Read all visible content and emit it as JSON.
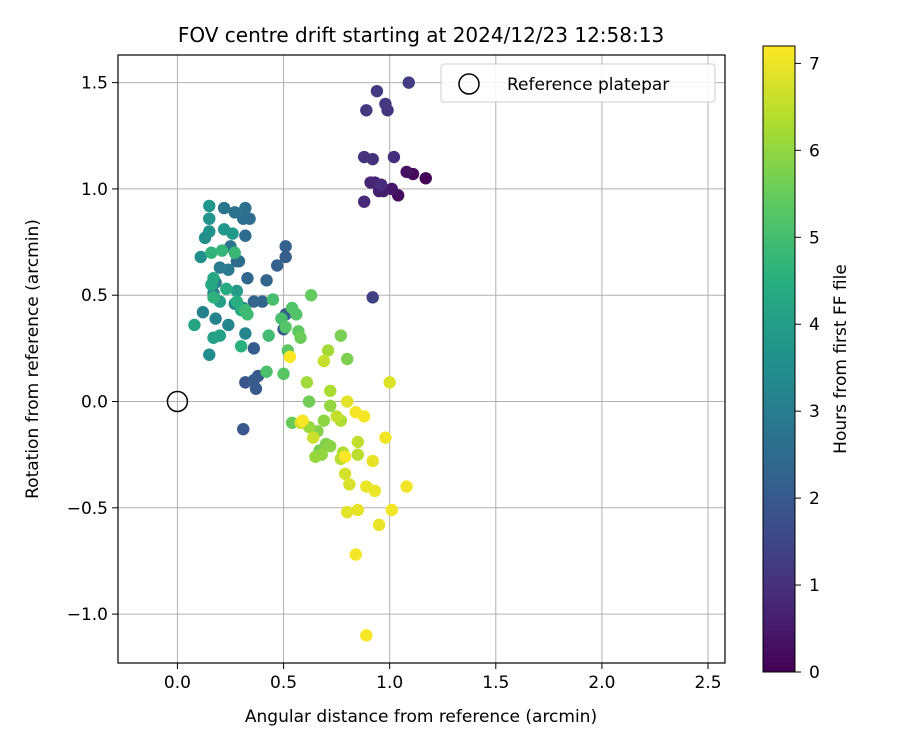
{
  "chart_data": {
    "type": "scatter",
    "title": "FOV centre drift starting at 2024/12/23 12:58:13",
    "xlabel": "Angular distance from reference (arcmin)",
    "ylabel": "Rotation from reference (arcmin)",
    "xlim": [
      -0.28,
      2.58
    ],
    "ylim": [
      -1.23,
      1.63
    ],
    "xticks": [
      0.0,
      0.5,
      1.0,
      1.5,
      2.0,
      2.5
    ],
    "xtick_labels": [
      "0.0",
      "0.5",
      "1.0",
      "1.5",
      "2.0",
      "2.5"
    ],
    "yticks": [
      -1.0,
      -0.5,
      0.0,
      0.5,
      1.0,
      1.5
    ],
    "ytick_labels": [
      "−1.0",
      "−0.5",
      "0.0",
      "0.5",
      "1.0",
      "1.5"
    ],
    "grid": true,
    "legend": {
      "placement": "top-right",
      "entries": [
        "Reference platepar"
      ]
    },
    "reference_point": {
      "x": 0.0,
      "y": 0.0
    },
    "colorbar": {
      "label": "Hours from first FF file",
      "colormap": "viridis",
      "range": [
        0,
        7.2
      ],
      "ticks": [
        0,
        1,
        2,
        3,
        4,
        5,
        6,
        7
      ],
      "tick_labels": [
        "0",
        "1",
        "2",
        "3",
        "4",
        "5",
        "6",
        "7"
      ]
    },
    "points": [
      {
        "x": 1.17,
        "y": 1.05,
        "h": 0.05
      },
      {
        "x": 1.11,
        "y": 1.07,
        "h": 0.15
      },
      {
        "x": 1.04,
        "y": 0.97,
        "h": 0.25
      },
      {
        "x": 1.08,
        "y": 1.08,
        "h": 0.35
      },
      {
        "x": 1.01,
        "y": 1.0,
        "h": 0.45
      },
      {
        "x": 0.97,
        "y": 0.99,
        "h": 0.55
      },
      {
        "x": 0.95,
        "y": 0.99,
        "h": 0.6
      },
      {
        "x": 0.93,
        "y": 1.03,
        "h": 0.7
      },
      {
        "x": 0.91,
        "y": 1.03,
        "h": 0.75
      },
      {
        "x": 0.88,
        "y": 0.94,
        "h": 0.85
      },
      {
        "x": 0.96,
        "y": 1.02,
        "h": 0.9
      },
      {
        "x": 1.02,
        "y": 1.15,
        "h": 0.95
      },
      {
        "x": 0.92,
        "y": 1.14,
        "h": 1.0
      },
      {
        "x": 0.88,
        "y": 1.15,
        "h": 1.05
      },
      {
        "x": 0.99,
        "y": 1.37,
        "h": 1.1
      },
      {
        "x": 0.98,
        "y": 1.4,
        "h": 1.15
      },
      {
        "x": 0.89,
        "y": 1.37,
        "h": 1.2
      },
      {
        "x": 0.94,
        "y": 1.46,
        "h": 1.25
      },
      {
        "x": 1.09,
        "y": 1.5,
        "h": 1.3
      },
      {
        "x": 0.92,
        "y": 0.49,
        "h": 1.4
      },
      {
        "x": 0.31,
        "y": -0.13,
        "h": 1.95
      },
      {
        "x": 0.32,
        "y": 0.09,
        "h": 1.95
      },
      {
        "x": 0.38,
        "y": 0.12,
        "h": 2.0
      },
      {
        "x": 0.37,
        "y": 0.06,
        "h": 2.0
      },
      {
        "x": 0.36,
        "y": 0.1,
        "h": 2.05
      },
      {
        "x": 0.36,
        "y": 0.25,
        "h": 2.05
      },
      {
        "x": 0.51,
        "y": 0.41,
        "h": 2.1
      },
      {
        "x": 0.5,
        "y": 0.34,
        "h": 2.1
      },
      {
        "x": 0.51,
        "y": 0.68,
        "h": 2.15
      },
      {
        "x": 0.51,
        "y": 0.73,
        "h": 2.2
      },
      {
        "x": 0.47,
        "y": 0.64,
        "h": 2.25
      },
      {
        "x": 0.42,
        "y": 0.57,
        "h": 2.3
      },
      {
        "x": 0.4,
        "y": 0.47,
        "h": 2.3
      },
      {
        "x": 0.36,
        "y": 0.47,
        "h": 2.35
      },
      {
        "x": 0.33,
        "y": 0.58,
        "h": 2.4
      },
      {
        "x": 0.28,
        "y": 0.66,
        "h": 2.45
      },
      {
        "x": 0.29,
        "y": 0.66,
        "h": 2.5
      },
      {
        "x": 0.32,
        "y": 0.78,
        "h": 2.5
      },
      {
        "x": 0.34,
        "y": 0.86,
        "h": 2.6
      },
      {
        "x": 0.31,
        "y": 0.86,
        "h": 2.6
      },
      {
        "x": 0.32,
        "y": 0.91,
        "h": 2.65
      },
      {
        "x": 0.27,
        "y": 0.89,
        "h": 2.7
      },
      {
        "x": 0.22,
        "y": 0.91,
        "h": 2.75
      },
      {
        "x": 0.25,
        "y": 0.73,
        "h": 2.8
      },
      {
        "x": 0.24,
        "y": 0.62,
        "h": 2.9
      },
      {
        "x": 0.2,
        "y": 0.63,
        "h": 2.95
      },
      {
        "x": 0.18,
        "y": 0.56,
        "h": 3.0
      },
      {
        "x": 0.17,
        "y": 0.51,
        "h": 3.05
      },
      {
        "x": 0.12,
        "y": 0.42,
        "h": 3.1
      },
      {
        "x": 0.18,
        "y": 0.39,
        "h": 3.2
      },
      {
        "x": 0.24,
        "y": 0.36,
        "h": 3.25
      },
      {
        "x": 0.32,
        "y": 0.32,
        "h": 3.3
      },
      {
        "x": 0.31,
        "y": 0.44,
        "h": 3.35
      },
      {
        "x": 0.27,
        "y": 0.46,
        "h": 3.4
      },
      {
        "x": 0.15,
        "y": 0.22,
        "h": 3.45
      },
      {
        "x": 0.11,
        "y": 0.68,
        "h": 3.5
      },
      {
        "x": 0.13,
        "y": 0.77,
        "h": 3.55
      },
      {
        "x": 0.15,
        "y": 0.8,
        "h": 3.6
      },
      {
        "x": 0.15,
        "y": 0.86,
        "h": 3.7
      },
      {
        "x": 0.15,
        "y": 0.92,
        "h": 3.75
      },
      {
        "x": 0.22,
        "y": 0.81,
        "h": 3.8
      },
      {
        "x": 0.26,
        "y": 0.79,
        "h": 3.85
      },
      {
        "x": 0.28,
        "y": 0.52,
        "h": 3.9
      },
      {
        "x": 0.2,
        "y": 0.47,
        "h": 4.0
      },
      {
        "x": 0.17,
        "y": 0.3,
        "h": 4.05
      },
      {
        "x": 0.2,
        "y": 0.31,
        "h": 4.1
      },
      {
        "x": 0.08,
        "y": 0.36,
        "h": 4.2
      },
      {
        "x": 0.17,
        "y": 0.58,
        "h": 4.25
      },
      {
        "x": 0.16,
        "y": 0.55,
        "h": 4.3
      },
      {
        "x": 0.23,
        "y": 0.53,
        "h": 4.4
      },
      {
        "x": 0.3,
        "y": 0.43,
        "h": 4.45
      },
      {
        "x": 0.28,
        "y": 0.47,
        "h": 4.5
      },
      {
        "x": 0.3,
        "y": 0.26,
        "h": 4.55
      },
      {
        "x": 0.17,
        "y": 0.49,
        "h": 4.6
      },
      {
        "x": 0.16,
        "y": 0.7,
        "h": 4.65
      },
      {
        "x": 0.21,
        "y": 0.71,
        "h": 4.7
      },
      {
        "x": 0.27,
        "y": 0.7,
        "h": 4.8
      },
      {
        "x": 0.32,
        "y": 0.43,
        "h": 4.85
      },
      {
        "x": 0.33,
        "y": 0.41,
        "h": 4.9
      },
      {
        "x": 0.43,
        "y": 0.31,
        "h": 4.95
      },
      {
        "x": 0.45,
        "y": 0.48,
        "h": 5.0
      },
      {
        "x": 0.49,
        "y": 0.39,
        "h": 5.05
      },
      {
        "x": 0.42,
        "y": 0.14,
        "h": 5.1
      },
      {
        "x": 0.54,
        "y": 0.44,
        "h": 5.15
      },
      {
        "x": 0.56,
        "y": 0.41,
        "h": 5.2
      },
      {
        "x": 0.51,
        "y": 0.35,
        "h": 5.25
      },
      {
        "x": 0.5,
        "y": 0.13,
        "h": 5.3
      },
      {
        "x": 0.52,
        "y": 0.24,
        "h": 5.35
      },
      {
        "x": 0.57,
        "y": 0.33,
        "h": 5.4
      },
      {
        "x": 0.63,
        "y": 0.5,
        "h": 5.45
      },
      {
        "x": 0.54,
        "y": -0.1,
        "h": 5.5
      },
      {
        "x": 0.58,
        "y": 0.3,
        "h": 5.55
      },
      {
        "x": 0.62,
        "y": 0.0,
        "h": 5.6
      },
      {
        "x": 0.67,
        "y": -0.23,
        "h": 5.65
      },
      {
        "x": 0.77,
        "y": 0.31,
        "h": 5.7
      },
      {
        "x": 0.8,
        "y": 0.2,
        "h": 5.75
      },
      {
        "x": 0.7,
        "y": -0.2,
        "h": 5.8
      },
      {
        "x": 0.66,
        "y": -0.14,
        "h": 5.85
      },
      {
        "x": 0.72,
        "y": -0.21,
        "h": 5.9
      },
      {
        "x": 0.69,
        "y": -0.09,
        "h": 5.95
      },
      {
        "x": 0.72,
        "y": -0.02,
        "h": 6.0
      },
      {
        "x": 0.68,
        "y": -0.25,
        "h": 6.0
      },
      {
        "x": 0.65,
        "y": -0.26,
        "h": 6.05
      },
      {
        "x": 0.62,
        "y": -0.12,
        "h": 6.1
      },
      {
        "x": 0.61,
        "y": 0.09,
        "h": 6.15
      },
      {
        "x": 0.71,
        "y": 0.24,
        "h": 6.2
      },
      {
        "x": 0.72,
        "y": 0.05,
        "h": 6.25
      },
      {
        "x": 0.77,
        "y": -0.09,
        "h": 6.3
      },
      {
        "x": 0.78,
        "y": -0.24,
        "h": 6.35
      },
      {
        "x": 0.77,
        "y": -0.27,
        "h": 6.4
      },
      {
        "x": 0.85,
        "y": -0.25,
        "h": 6.45
      },
      {
        "x": 0.85,
        "y": -0.19,
        "h": 6.5
      },
      {
        "x": 0.75,
        "y": -0.07,
        "h": 6.55
      },
      {
        "x": 0.69,
        "y": 0.19,
        "h": 6.6
      },
      {
        "x": 0.64,
        "y": -0.17,
        "h": 6.65
      },
      {
        "x": 0.58,
        "y": -0.1,
        "h": 6.7
      },
      {
        "x": 0.79,
        "y": -0.34,
        "h": 6.75
      },
      {
        "x": 0.81,
        "y": -0.39,
        "h": 6.8
      },
      {
        "x": 1.0,
        "y": 0.09,
        "h": 6.85
      },
      {
        "x": 0.8,
        "y": 0.0,
        "h": 6.9
      },
      {
        "x": 0.8,
        "y": -0.52,
        "h": 6.9
      },
      {
        "x": 0.85,
        "y": -0.51,
        "h": 6.95
      },
      {
        "x": 0.92,
        "y": -0.28,
        "h": 6.95
      },
      {
        "x": 0.89,
        "y": -0.4,
        "h": 7.0
      },
      {
        "x": 0.93,
        "y": -0.42,
        "h": 7.0
      },
      {
        "x": 0.95,
        "y": -0.58,
        "h": 7.0
      },
      {
        "x": 1.01,
        "y": -0.51,
        "h": 7.05
      },
      {
        "x": 1.08,
        "y": -0.4,
        "h": 7.05
      },
      {
        "x": 0.98,
        "y": -0.17,
        "h": 7.05
      },
      {
        "x": 0.84,
        "y": -0.05,
        "h": 7.1
      },
      {
        "x": 0.88,
        "y": -0.07,
        "h": 7.1
      },
      {
        "x": 0.84,
        "y": -0.72,
        "h": 7.1
      },
      {
        "x": 0.89,
        "y": -1.1,
        "h": 7.15
      },
      {
        "x": 0.79,
        "y": -0.26,
        "h": 7.15
      },
      {
        "x": 0.59,
        "y": -0.09,
        "h": 7.15
      },
      {
        "x": 0.53,
        "y": 0.21,
        "h": 7.2
      }
    ]
  }
}
